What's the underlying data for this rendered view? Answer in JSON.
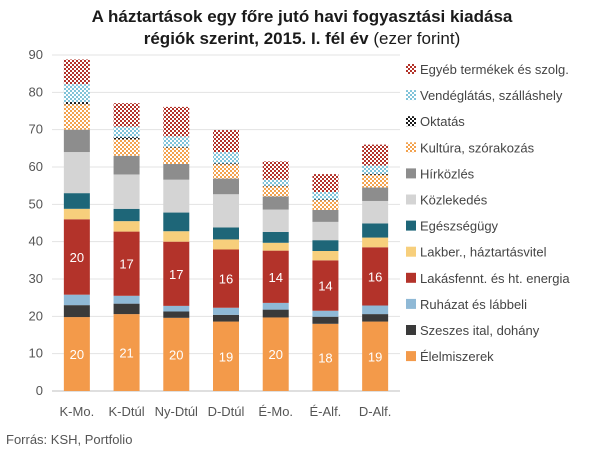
{
  "chart_data": {
    "type": "bar",
    "stacked": true,
    "title_line1": "A háztartások egy főre jutó havi fogyasztási kiadása",
    "title_line2_bold": "régiók szerint, 2015. I. fél év",
    "title_line2_plain": " (ezer forint)",
    "categories": [
      "K-Mo.",
      "K-Dtúl",
      "Ny-Dtúl",
      "D-Dtúl",
      "É-Mo.",
      "É-Alf.",
      "D-Alf."
    ],
    "ylim": [
      0,
      90
    ],
    "yticks": [
      0,
      10,
      20,
      30,
      40,
      50,
      60,
      70,
      80,
      90
    ],
    "grid": true,
    "legend_position": "right",
    "series": [
      {
        "name": "Élelmiszerek",
        "color": "#f39a4a",
        "pattern": "solid",
        "values": [
          19.8,
          20.6,
          19.6,
          18.6,
          19.7,
          18.0,
          18.6
        ],
        "labels": [
          "20",
          "21",
          "20",
          "19",
          "20",
          "18",
          "19"
        ]
      },
      {
        "name": "Szeszes ital, dohány",
        "color": "#3a3a3a",
        "pattern": "solid",
        "values": [
          3.2,
          2.8,
          1.7,
          1.8,
          2.1,
          1.9,
          2.0
        ],
        "labels": []
      },
      {
        "name": "Ruházat és lábbeli",
        "color": "#8fb9d6",
        "pattern": "solid",
        "values": [
          2.8,
          2.1,
          1.5,
          1.9,
          1.8,
          1.6,
          2.3
        ],
        "labels": []
      },
      {
        "name": "Lakásfennt. és ht. energia",
        "color": "#b3332a",
        "pattern": "solid",
        "values": [
          20.2,
          17.2,
          17.2,
          15.6,
          14.0,
          13.5,
          15.6
        ],
        "labels": [
          "20",
          "17",
          "17",
          "16",
          "14",
          "14",
          "16"
        ]
      },
      {
        "name": "Lakber., háztartásvitel",
        "color": "#f7cf7c",
        "pattern": "solid",
        "values": [
          2.8,
          2.8,
          2.8,
          2.7,
          2.1,
          2.5,
          2.6
        ],
        "labels": []
      },
      {
        "name": "Egészségügy",
        "color": "#1e6678",
        "pattern": "solid",
        "values": [
          4.2,
          3.3,
          5.0,
          3.2,
          2.9,
          2.9,
          3.8
        ],
        "labels": []
      },
      {
        "name": "Közlekedés",
        "color": "#d4d4d4",
        "pattern": "solid",
        "values": [
          11.0,
          9.2,
          8.8,
          8.9,
          6.0,
          4.9,
          6.0
        ],
        "labels": []
      },
      {
        "name": "Hírközlés",
        "color": "#8d8d8d",
        "pattern": "solid",
        "values": [
          6.0,
          5.0,
          4.2,
          4.2,
          3.5,
          3.2,
          3.6
        ],
        "labels": []
      },
      {
        "name": "Kultúra, szórakozás",
        "color": "#f3a24e",
        "pattern": "dots",
        "values": [
          6.8,
          4.4,
          4.4,
          3.8,
          2.7,
          2.6,
          3.4
        ],
        "labels": []
      },
      {
        "name": "Oktatás",
        "color": "#1a1a1a",
        "pattern": "dots",
        "values": [
          0.6,
          0.6,
          0.2,
          0.3,
          0.2,
          0.2,
          0.3
        ],
        "labels": []
      },
      {
        "name": "Vendéglátás, szálláshely",
        "color": "#7fc3d9",
        "pattern": "dots",
        "values": [
          4.8,
          2.8,
          2.8,
          3.0,
          1.6,
          2.0,
          2.2
        ],
        "labels": []
      },
      {
        "name": "Egyéb termékek és szolg.",
        "color": "#b3332a",
        "pattern": "dots",
        "values": [
          6.6,
          6.3,
          7.9,
          5.9,
          4.9,
          4.8,
          5.6
        ],
        "labels": []
      }
    ]
  },
  "footer": {
    "source": "Forrás: KSH, Portfolio"
  }
}
